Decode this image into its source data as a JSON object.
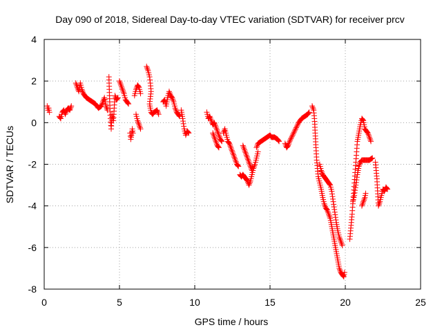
{
  "chart_data": {
    "type": "scatter",
    "title": "Day 090 of 2018, Sidereal Day-to-day VTEC variation (SDTVAR) for receiver prcv",
    "xlabel": "GPS time / hours",
    "ylabel": "SDTVAR / TECUs",
    "xlim": [
      0,
      25
    ],
    "ylim": [
      -8,
      4
    ],
    "xticks": [
      0,
      5,
      10,
      15,
      20,
      25
    ],
    "yticks": [
      -8,
      -6,
      -4,
      -2,
      0,
      2,
      4
    ],
    "xtick_labels": [
      "0",
      "5",
      "10",
      "15",
      "20",
      "25"
    ],
    "ytick_labels": [
      "-8",
      "-6",
      "-4",
      "-2",
      "0",
      "2",
      "4"
    ],
    "grid": true,
    "marker": "+",
    "color": "#ff0000",
    "series": [
      {
        "name": "SDTVAR",
        "segments": [
          [
            [
              0.2,
              0.8
            ],
            [
              0.25,
              0.6
            ],
            [
              0.3,
              0.7
            ],
            [
              0.35,
              0.5
            ]
          ],
          [
            [
              1.0,
              0.3
            ],
            [
              1.1,
              0.2
            ],
            [
              1.2,
              0.5
            ],
            [
              1.3,
              0.6
            ],
            [
              1.4,
              0.4
            ],
            [
              1.5,
              0.6
            ],
            [
              1.6,
              0.7
            ],
            [
              1.7,
              0.6
            ],
            [
              1.8,
              0.8
            ]
          ],
          [
            [
              2.1,
              1.9
            ],
            [
              2.2,
              1.7
            ],
            [
              2.3,
              1.5
            ],
            [
              2.4,
              1.9
            ],
            [
              2.5,
              1.6
            ],
            [
              2.6,
              1.4
            ],
            [
              2.7,
              1.3
            ],
            [
              2.8,
              1.2
            ],
            [
              3.0,
              1.1
            ],
            [
              3.2,
              1.0
            ],
            [
              3.4,
              0.9
            ],
            [
              3.6,
              0.7
            ],
            [
              3.8,
              0.8
            ],
            [
              3.9,
              1.0
            ],
            [
              4.0,
              1.2
            ],
            [
              4.1,
              0.8
            ],
            [
              4.2,
              0.6
            ]
          ],
          [
            [
              4.3,
              2.2
            ],
            [
              4.35,
              1.0
            ],
            [
              4.4,
              0.2
            ],
            [
              4.45,
              -0.3
            ],
            [
              4.5,
              0.4
            ],
            [
              4.6,
              0.1
            ],
            [
              4.7,
              1.3
            ],
            [
              4.8,
              1.1
            ],
            [
              4.9,
              1.2
            ]
          ],
          [
            [
              5.0,
              2.0
            ],
            [
              5.1,
              1.8
            ],
            [
              5.2,
              1.6
            ],
            [
              5.3,
              1.4
            ],
            [
              5.4,
              1.1
            ],
            [
              5.5,
              1.0
            ],
            [
              5.6,
              0.9
            ]
          ],
          [
            [
              5.7,
              -0.5
            ],
            [
              5.75,
              -0.8
            ],
            [
              5.8,
              -0.6
            ],
            [
              5.85,
              -0.3
            ],
            [
              5.9,
              -0.5
            ]
          ],
          [
            [
              6.0,
              1.3
            ],
            [
              6.1,
              1.6
            ],
            [
              6.2,
              1.8
            ],
            [
              6.3,
              1.7
            ],
            [
              6.4,
              1.4
            ]
          ],
          [
            [
              6.1,
              0.4
            ],
            [
              6.2,
              0.1
            ],
            [
              6.3,
              -0.1
            ],
            [
              6.4,
              -0.3
            ]
          ],
          [
            [
              6.8,
              2.7
            ],
            [
              6.9,
              2.5
            ],
            [
              7.0,
              2.2
            ],
            [
              7.05,
              1.9
            ],
            [
              7.1,
              1.5
            ],
            [
              7.0,
              0.9
            ],
            [
              7.1,
              0.5
            ],
            [
              7.2,
              0.4
            ],
            [
              7.3,
              0.5
            ],
            [
              7.5,
              0.6
            ],
            [
              7.6,
              0.4
            ]
          ],
          [
            [
              7.9,
              1.0
            ],
            [
              8.0,
              1.1
            ],
            [
              8.1,
              0.8
            ],
            [
              8.2,
              1.2
            ],
            [
              8.3,
              1.5
            ],
            [
              8.4,
              1.3
            ],
            [
              8.5,
              1.2
            ],
            [
              8.6,
              1.0
            ],
            [
              8.7,
              0.7
            ],
            [
              8.8,
              0.5
            ],
            [
              8.9,
              0.4
            ],
            [
              9.0,
              0.3
            ]
          ],
          [
            [
              9.1,
              0.6
            ],
            [
              9.2,
              0.2
            ],
            [
              9.3,
              -0.3
            ],
            [
              9.4,
              -0.6
            ],
            [
              9.5,
              -0.4
            ],
            [
              9.6,
              -0.5
            ]
          ],
          [
            [
              10.8,
              0.5
            ],
            [
              10.9,
              0.2
            ],
            [
              11.0,
              0.3
            ],
            [
              11.1,
              0.1
            ],
            [
              11.2,
              -0.1
            ],
            [
              11.3,
              0.0
            ],
            [
              11.4,
              -0.2
            ],
            [
              11.5,
              -0.4
            ],
            [
              11.6,
              -0.6
            ],
            [
              11.7,
              -0.8
            ],
            [
              11.8,
              -0.9
            ]
          ],
          [
            [
              11.2,
              -0.5
            ],
            [
              11.3,
              -0.7
            ],
            [
              11.4,
              -0.9
            ],
            [
              11.5,
              -1.1
            ],
            [
              11.6,
              -1.2
            ]
          ],
          [
            [
              11.9,
              -0.5
            ],
            [
              12.0,
              -0.3
            ],
            [
              12.1,
              -0.6
            ],
            [
              12.2,
              -0.9
            ],
            [
              12.3,
              -1.0
            ],
            [
              12.4,
              -1.2
            ],
            [
              12.5,
              -1.4
            ],
            [
              12.6,
              -1.6
            ],
            [
              12.7,
              -1.8
            ],
            [
              12.8,
              -2.0
            ],
            [
              12.9,
              -2.1
            ]
          ],
          [
            [
              13.0,
              -2.5
            ],
            [
              13.1,
              -2.6
            ],
            [
              13.2,
              -2.5
            ],
            [
              13.3,
              -2.6
            ],
            [
              13.4,
              -2.7
            ],
            [
              13.5,
              -2.8
            ],
            [
              13.6,
              -3.0
            ],
            [
              13.7,
              -2.8
            ],
            [
              13.8,
              -2.5
            ],
            [
              13.9,
              -2.2
            ],
            [
              14.0,
              -2.0
            ],
            [
              14.1,
              -1.7
            ],
            [
              14.2,
              -1.4
            ]
          ],
          [
            [
              13.2,
              -1.1
            ],
            [
              13.3,
              -1.3
            ],
            [
              13.4,
              -1.5
            ],
            [
              13.5,
              -1.7
            ],
            [
              13.6,
              -1.9
            ],
            [
              13.7,
              -2.1
            ],
            [
              13.8,
              -2.3
            ]
          ],
          [
            [
              14.1,
              -1.2
            ],
            [
              14.2,
              -1.0
            ],
            [
              14.4,
              -0.9
            ],
            [
              14.6,
              -0.8
            ],
            [
              14.8,
              -0.7
            ],
            [
              15.0,
              -0.6
            ],
            [
              15.1,
              -0.7
            ],
            [
              15.3,
              -0.7
            ],
            [
              15.5,
              -0.8
            ],
            [
              15.6,
              -0.9
            ]
          ],
          [
            [
              16.0,
              -1.0
            ],
            [
              16.1,
              -1.2
            ],
            [
              16.2,
              -1.1
            ],
            [
              16.3,
              -0.9
            ],
            [
              16.5,
              -0.6
            ],
            [
              16.7,
              -0.3
            ],
            [
              16.9,
              0.0
            ],
            [
              17.1,
              0.2
            ],
            [
              17.3,
              0.3
            ],
            [
              17.5,
              0.4
            ],
            [
              17.6,
              0.5
            ]
          ],
          [
            [
              17.8,
              0.8
            ],
            [
              17.9,
              0.6
            ],
            [
              17.95,
              0.2
            ],
            [
              18.0,
              -0.5
            ],
            [
              18.05,
              -1.2
            ],
            [
              18.1,
              -1.8
            ],
            [
              18.15,
              -2.2
            ],
            [
              18.2,
              -2.6
            ],
            [
              18.3,
              -2.9
            ],
            [
              18.4,
              -3.2
            ],
            [
              18.5,
              -3.6
            ],
            [
              18.6,
              -3.9
            ],
            [
              18.7,
              -4.1
            ],
            [
              18.8,
              -4.2
            ],
            [
              18.9,
              -4.4
            ],
            [
              19.0,
              -4.6
            ],
            [
              19.1,
              -5.0
            ],
            [
              19.2,
              -5.4
            ],
            [
              19.3,
              -5.8
            ],
            [
              19.4,
              -6.2
            ],
            [
              19.5,
              -6.6
            ],
            [
              19.6,
              -7.0
            ],
            [
              19.7,
              -7.2
            ],
            [
              19.8,
              -7.3
            ],
            [
              19.9,
              -7.4
            ],
            [
              19.95,
              -7.2
            ]
          ],
          [
            [
              18.3,
              -2.0
            ],
            [
              18.4,
              -2.3
            ],
            [
              18.5,
              -2.5
            ],
            [
              18.6,
              -2.6
            ],
            [
              18.7,
              -2.7
            ],
            [
              18.8,
              -2.8
            ],
            [
              18.9,
              -2.9
            ],
            [
              19.0,
              -3.0
            ],
            [
              19.1,
              -3.3
            ],
            [
              19.2,
              -3.8
            ],
            [
              19.3,
              -4.3
            ],
            [
              19.4,
              -4.8
            ],
            [
              19.5,
              -5.2
            ],
            [
              19.6,
              -5.5
            ],
            [
              19.7,
              -5.7
            ],
            [
              19.8,
              -5.9
            ]
          ],
          [
            [
              20.3,
              -5.6
            ],
            [
              20.35,
              -5.2
            ],
            [
              20.4,
              -4.8
            ],
            [
              20.45,
              -4.4
            ],
            [
              20.5,
              -3.9
            ],
            [
              20.55,
              -3.4
            ],
            [
              20.6,
              -2.9
            ],
            [
              20.65,
              -2.4
            ],
            [
              20.7,
              -1.9
            ],
            [
              20.75,
              -1.4
            ],
            [
              20.8,
              -0.9
            ],
            [
              20.9,
              -0.5
            ],
            [
              21.0,
              -0.1
            ],
            [
              21.1,
              0.2
            ],
            [
              21.2,
              0.1
            ],
            [
              21.3,
              -0.3
            ],
            [
              21.4,
              -0.4
            ],
            [
              21.5,
              -0.5
            ],
            [
              21.6,
              -0.7
            ],
            [
              21.7,
              -0.9
            ]
          ],
          [
            [
              20.5,
              -3.8
            ],
            [
              20.6,
              -3.5
            ],
            [
              20.7,
              -3.0
            ],
            [
              20.8,
              -2.5
            ],
            [
              20.9,
              -2.1
            ],
            [
              21.0,
              -1.9
            ],
            [
              21.1,
              -1.8
            ],
            [
              21.2,
              -1.8
            ],
            [
              21.4,
              -1.8
            ],
            [
              21.6,
              -1.8
            ],
            [
              21.8,
              -1.7
            ]
          ],
          [
            [
              21.1,
              -4.0
            ],
            [
              21.2,
              -3.8
            ],
            [
              21.3,
              -3.6
            ],
            [
              21.35,
              -3.4
            ]
          ],
          [
            [
              22.0,
              -1.9
            ],
            [
              22.1,
              -2.7
            ],
            [
              22.2,
              -4.0
            ],
            [
              22.3,
              -3.8
            ],
            [
              22.4,
              -3.5
            ],
            [
              22.5,
              -3.2
            ],
            [
              22.6,
              -3.3
            ],
            [
              22.7,
              -3.1
            ],
            [
              22.8,
              -3.2
            ]
          ]
        ]
      }
    ]
  }
}
